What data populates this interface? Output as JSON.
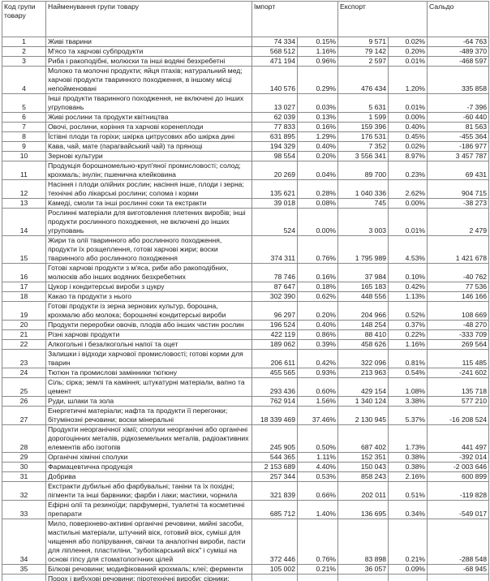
{
  "table": {
    "header": [
      "Код групи товару",
      "Найменування групи товару",
      "Імпорт",
      "Експорт",
      "Сальдо"
    ],
    "rows": [
      [
        "1",
        "Живі тварини",
        "74 334",
        "0.15%",
        "9 571",
        "0.02%",
        "-64 763"
      ],
      [
        "2",
        "М'ясо та харчові субпродукти",
        "568 512",
        "1.16%",
        "79 142",
        "0.20%",
        "-489 370"
      ],
      [
        "3",
        "Риба і ракоподібні, молюски та інші водяні безхребетні",
        "471 194",
        "0.96%",
        "2 597",
        "0.01%",
        "-468 597"
      ],
      [
        "4",
        "Молоко та молочні продукти; яйця птахів; натуральний мед; харчові продукти тваринного походження, в іншому місці непойменовані",
        "140 576",
        "0.29%",
        "476 434",
        "1.20%",
        "335 858"
      ],
      [
        "5",
        "Інші продукти тваринного походження, не включені до інших угруповань",
        "13 027",
        "0.03%",
        "5 631",
        "0.01%",
        "-7 396"
      ],
      [
        "6",
        "Живі рослини та продукти квітництва",
        "62 039",
        "0.13%",
        "1 599",
        "0.00%",
        "-60 440"
      ],
      [
        "7",
        "Овочі, рослини, коріння та харчові коренеплоди",
        "77 833",
        "0.16%",
        "159 396",
        "0.40%",
        "81 563"
      ],
      [
        "8",
        "Їстівні плоди та горіхи; шкірка цитрусових або шкірка дині",
        "631 895",
        "1.29%",
        "176 531",
        "0.45%",
        "-455 364"
      ],
      [
        "9",
        "Кава, чай, мате (парагвайський чай) та прянощі",
        "194 329",
        "0.40%",
        "7 352",
        "0.02%",
        "-186 977"
      ],
      [
        "10",
        "Зернові культури",
        "98 554",
        "0.20%",
        "3 556 341",
        "8.97%",
        "3 457 787"
      ],
      [
        "11",
        "Продукція борошномельно-круп'яної промисловості; солод; крохмаль; інулін; пшенична клейковина",
        "20 269",
        "0.04%",
        "89 700",
        "0.23%",
        "69 431"
      ],
      [
        "12",
        "Насіння і плоди олійних рослин; насіння інше, плоди і зерна; технічні або лікарські рослини; солома і корми",
        "135 621",
        "0.28%",
        "1 040 336",
        "2.62%",
        "904 715"
      ],
      [
        "13",
        "Камеді, смоли та інші рослинні соки та екстракти",
        "39 018",
        "0.08%",
        "745",
        "0.00%",
        "-38 273"
      ],
      [
        "14",
        "Рослинні матеріали для виготовлення плетених виробів; інші продукти рослинного походження, не включені до інших угруповань",
        "524",
        "0.00%",
        "3 003",
        "0.01%",
        "2 479"
      ],
      [
        "15",
        "Жири та олії тваринного або рослинного походження, продукти їх розщеплення, готові харчові жири; воски тваринного або рослинного походження",
        "374 311",
        "0.76%",
        "1 795 989",
        "4.53%",
        "1 421 678"
      ],
      [
        "16",
        "Готові харчові продукти з м'яса, риби або ракоподібних, молюсків або інших водяних безхребетних",
        "78 746",
        "0.16%",
        "37 984",
        "0.10%",
        "-40 762"
      ],
      [
        "17",
        "Цукор і кондитерські вироби з цукру",
        "87 647",
        "0.18%",
        "165 183",
        "0.42%",
        "77 536"
      ],
      [
        "18",
        "Какао та продукти з нього",
        "302 390",
        "0.62%",
        "448 556",
        "1.13%",
        "146 166"
      ],
      [
        "19",
        "Готові продукти із зерна зернових культур, борошна, крохмалю або молока; борошняні кондитерські вироби",
        "96 297",
        "0.20%",
        "204 966",
        "0.52%",
        "108 669"
      ],
      [
        "20",
        "Продукти переробки овочів, плодів або інших частин рослин",
        "196 524",
        "0.40%",
        "148 254",
        "0.37%",
        "-48 270"
      ],
      [
        "21",
        "Різні харчові продукти",
        "422 119",
        "0.86%",
        "88 410",
        "0.22%",
        "-333 709"
      ],
      [
        "22",
        "Алкогольні і безалкогольні напої та оцет",
        "189 062",
        "0.39%",
        "458 626",
        "1.16%",
        "269 564"
      ],
      [
        "23",
        "Залишки і відходи харчової промисловості; готові корми для тварин",
        "206 611",
        "0.42%",
        "322 096",
        "0.81%",
        "115 485"
      ],
      [
        "24",
        "Тютюн та промислові замінники тютюну",
        "455 565",
        "0.93%",
        "213 963",
        "0.54%",
        "-241 602"
      ],
      [
        "25",
        "Сіль; сірка; землі та каміння; штукатурні матеріали, вапно та цемент",
        "293 436",
        "0.60%",
        "429 154",
        "1.08%",
        "135 718"
      ],
      [
        "26",
        "Руди, шлаки та зола",
        "762 914",
        "1.56%",
        "1 340 124",
        "3.38%",
        "577 210"
      ],
      [
        "27",
        "Енергетичні матеріали; нафта та продукти її перегонки; бітумінозні речовини; воски мінеральні",
        "18 339 469",
        "37.46%",
        "2 130 945",
        "5.37%",
        "-16 208 524"
      ],
      [
        "28",
        "Продукти неорганічної хімії; сполуки неорганічні або органічні дорогоцінних металів, рідкоземельних металів, радіоактивних елементів або ізотопів",
        "245 905",
        "0.50%",
        "687 402",
        "1.73%",
        "441 497"
      ],
      [
        "29",
        "Органічні хімічні сполуки",
        "544 365",
        "1.11%",
        "152 351",
        "0.38%",
        "-392 014"
      ],
      [
        "30",
        "Фармацевтична продукція",
        "2 153 689",
        "4.40%",
        "150 043",
        "0.38%",
        "-2 003 646"
      ],
      [
        "31",
        "Добрива",
        "257 344",
        "0.53%",
        "858 243",
        "2.16%",
        "600 899"
      ],
      [
        "32",
        "Екстракти дубильні або фарбувальні; таніни та їх похідні; пігменти та інші барвники; фарби і лаки; мастики, чорнила",
        "321 839",
        "0.66%",
        "202 011",
        "0.51%",
        "-119 828"
      ],
      [
        "33",
        "Ефірні олії та резиноїди; парфумерні, туалетні та косметичні препарати",
        "685 712",
        "1.40%",
        "136 695",
        "0.34%",
        "-549 017"
      ],
      [
        "34",
        "Мило, поверхнево-активні органічні речовини, мийні засоби, мастильні матеріали, штучний віск, готовий віск, суміші для чищення або полірування, свічки та аналогічні вироби, пасти для ліплення, пластиліни, \"зубопікарський віск\" і суміші на основі гіпсу для стоматологічних цілей",
        "372 446",
        "0.76%",
        "83 898",
        "0.21%",
        "-288 548"
      ],
      [
        "35",
        "Білкові речовини; модифікований крохмаль; клеї; ферменти",
        "105 002",
        "0.21%",
        "36 057",
        "0.09%",
        "-68 945"
      ],
      [
        "36",
        "Порох і вибухові речовини; піротехнічні вироби; сірники; пірофорні сплави; деякі речовини, що загоряються",
        "19 174",
        "0.04%",
        "15 274",
        "0.04%",
        "-3 900"
      ]
    ]
  }
}
